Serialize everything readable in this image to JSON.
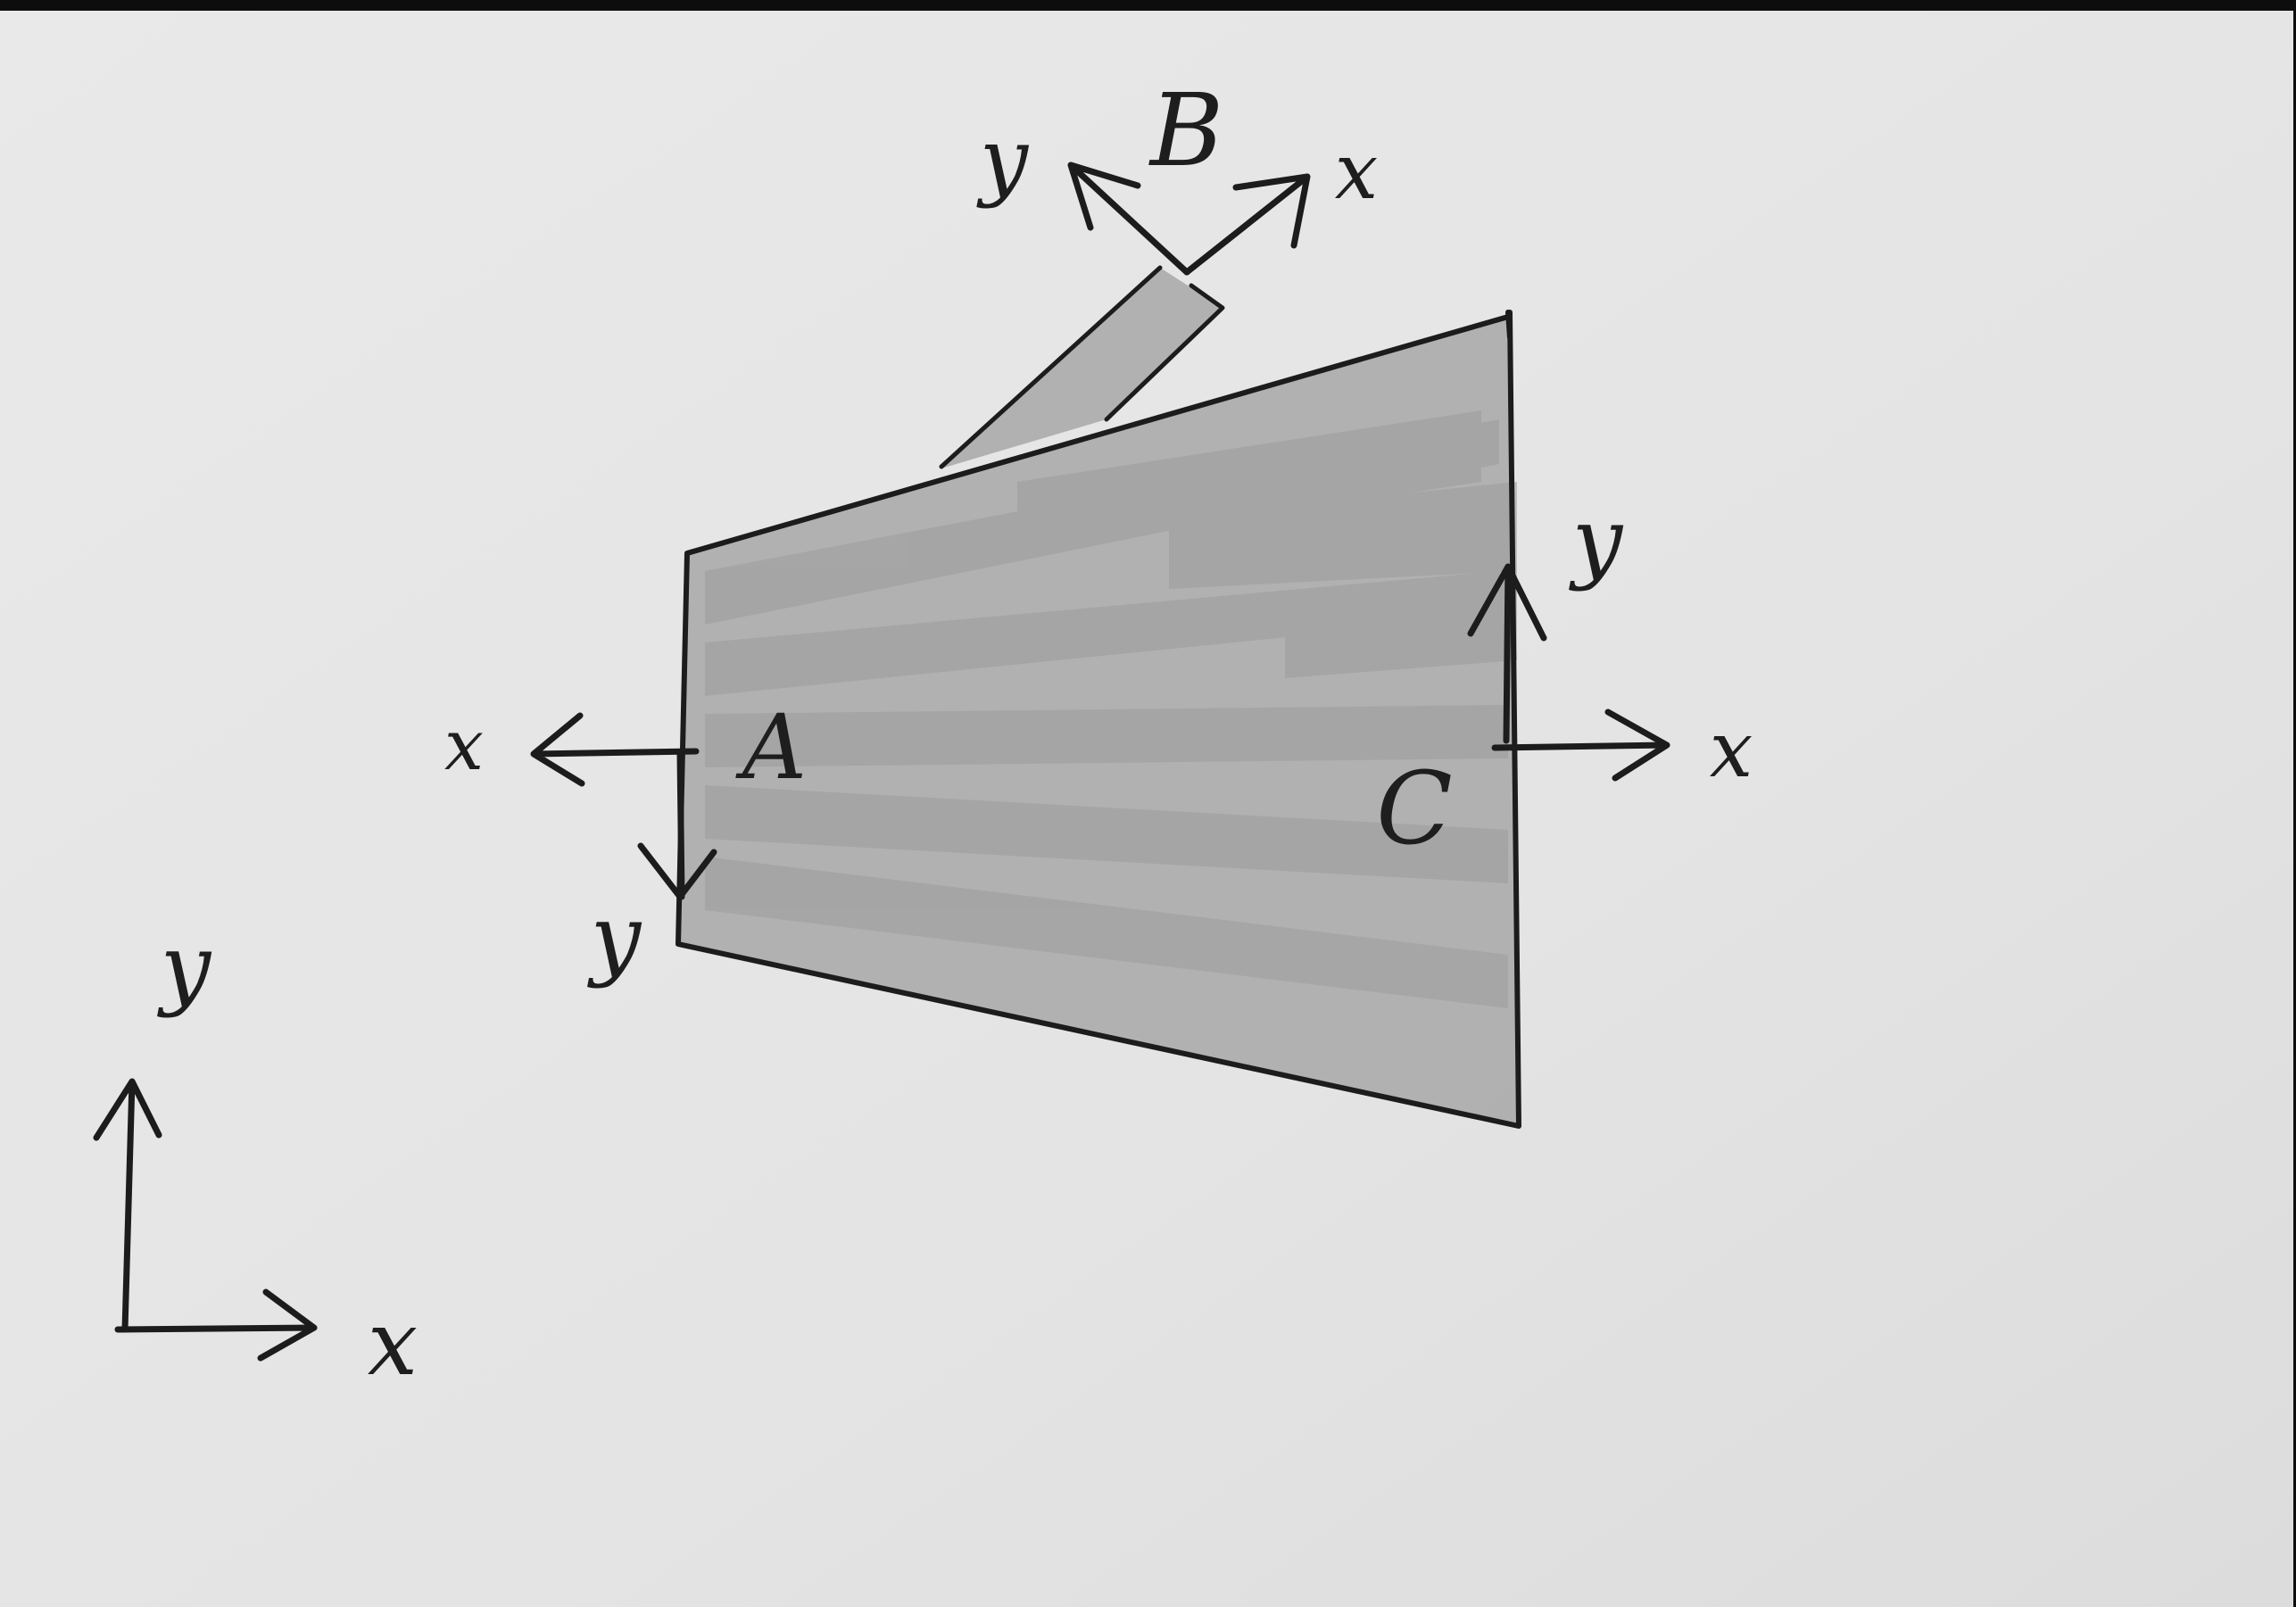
{
  "points": {
    "A": {
      "label": "A"
    },
    "B": {
      "label": "B"
    },
    "C": {
      "label": "C"
    }
  },
  "frames": {
    "A": {
      "x_label": "x",
      "y_label": "y"
    },
    "B": {
      "x_label": "x",
      "y_label": "y"
    },
    "C": {
      "x_label": "x",
      "y_label": "y"
    },
    "global": {
      "x_label": "x",
      "y_label": "y"
    }
  },
  "colors": {
    "paper": "#e6e6e6",
    "ink": "#1c1c1c",
    "shading": "#a9a9a9"
  }
}
